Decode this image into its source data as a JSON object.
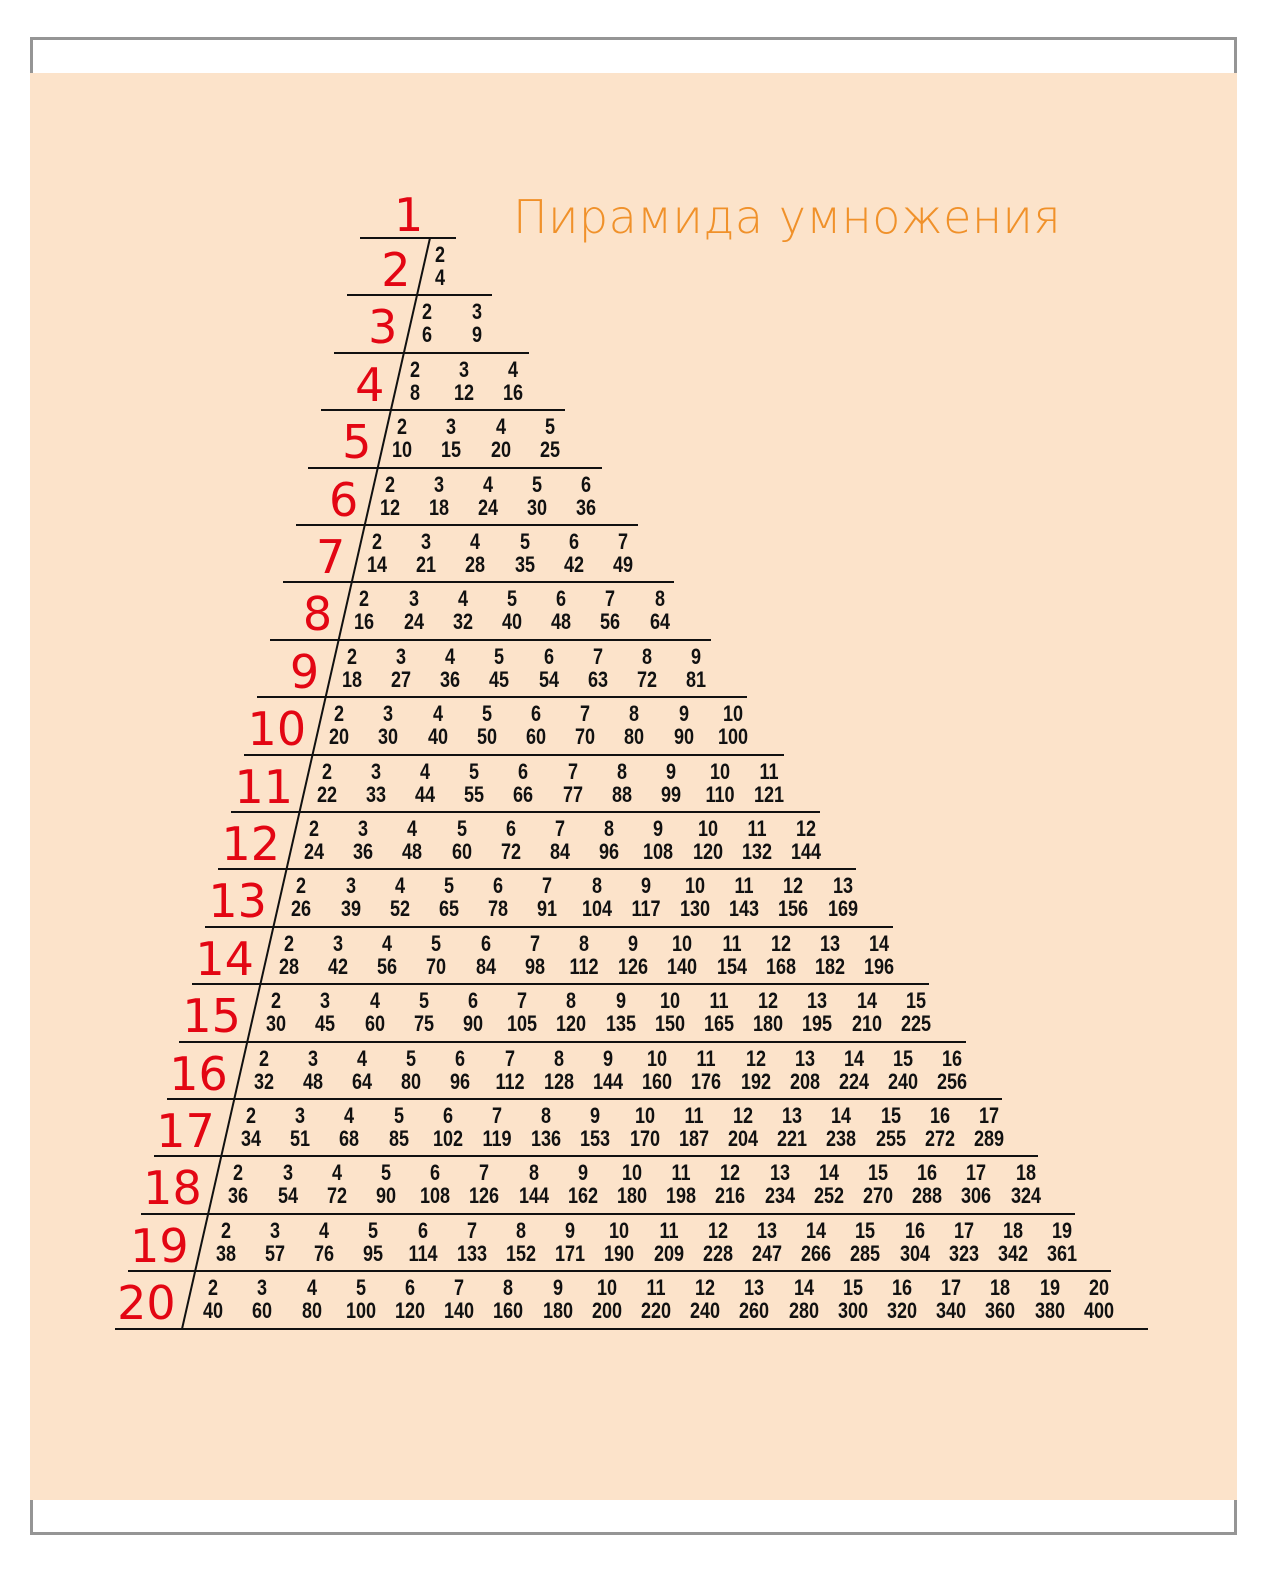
{
  "title": "Пирамида умножения",
  "colors": {
    "background": "#FCE3CA",
    "frame": "#959595",
    "title": "#F0912A",
    "multiplier": "#E30613",
    "text": "#111111"
  },
  "rows": [
    {
      "n": 1,
      "pairs": []
    },
    {
      "n": 2,
      "pairs": [
        [
          2,
          4
        ]
      ]
    },
    {
      "n": 3,
      "pairs": [
        [
          2,
          6
        ],
        [
          3,
          9
        ]
      ]
    },
    {
      "n": 4,
      "pairs": [
        [
          2,
          8
        ],
        [
          3,
          12
        ],
        [
          4,
          16
        ]
      ]
    },
    {
      "n": 5,
      "pairs": [
        [
          2,
          10
        ],
        [
          3,
          15
        ],
        [
          4,
          20
        ],
        [
          5,
          25
        ]
      ]
    },
    {
      "n": 6,
      "pairs": [
        [
          2,
          12
        ],
        [
          3,
          18
        ],
        [
          4,
          24
        ],
        [
          5,
          30
        ],
        [
          6,
          36
        ]
      ]
    },
    {
      "n": 7,
      "pairs": [
        [
          2,
          14
        ],
        [
          3,
          21
        ],
        [
          4,
          28
        ],
        [
          5,
          35
        ],
        [
          6,
          42
        ],
        [
          7,
          49
        ]
      ]
    },
    {
      "n": 8,
      "pairs": [
        [
          2,
          16
        ],
        [
          3,
          24
        ],
        [
          4,
          32
        ],
        [
          5,
          40
        ],
        [
          6,
          48
        ],
        [
          7,
          56
        ],
        [
          8,
          64
        ]
      ]
    },
    {
      "n": 9,
      "pairs": [
        [
          2,
          18
        ],
        [
          3,
          27
        ],
        [
          4,
          36
        ],
        [
          5,
          45
        ],
        [
          6,
          54
        ],
        [
          7,
          63
        ],
        [
          8,
          72
        ],
        [
          9,
          81
        ]
      ]
    },
    {
      "n": 10,
      "pairs": [
        [
          2,
          20
        ],
        [
          3,
          30
        ],
        [
          4,
          40
        ],
        [
          5,
          50
        ],
        [
          6,
          60
        ],
        [
          7,
          70
        ],
        [
          8,
          80
        ],
        [
          9,
          90
        ],
        [
          10,
          100
        ]
      ]
    },
    {
      "n": 11,
      "pairs": [
        [
          2,
          22
        ],
        [
          3,
          33
        ],
        [
          4,
          44
        ],
        [
          5,
          55
        ],
        [
          6,
          66
        ],
        [
          7,
          77
        ],
        [
          8,
          88
        ],
        [
          9,
          99
        ],
        [
          10,
          110
        ],
        [
          11,
          121
        ]
      ]
    },
    {
      "n": 12,
      "pairs": [
        [
          2,
          24
        ],
        [
          3,
          36
        ],
        [
          4,
          48
        ],
        [
          5,
          60
        ],
        [
          6,
          72
        ],
        [
          7,
          84
        ],
        [
          8,
          96
        ],
        [
          9,
          108
        ],
        [
          10,
          120
        ],
        [
          11,
          132
        ],
        [
          12,
          144
        ]
      ]
    },
    {
      "n": 13,
      "pairs": [
        [
          2,
          26
        ],
        [
          3,
          39
        ],
        [
          4,
          52
        ],
        [
          5,
          65
        ],
        [
          6,
          78
        ],
        [
          7,
          91
        ],
        [
          8,
          104
        ],
        [
          9,
          117
        ],
        [
          10,
          130
        ],
        [
          11,
          143
        ],
        [
          12,
          156
        ],
        [
          13,
          169
        ]
      ]
    },
    {
      "n": 14,
      "pairs": [
        [
          2,
          28
        ],
        [
          3,
          42
        ],
        [
          4,
          56
        ],
        [
          5,
          70
        ],
        [
          6,
          84
        ],
        [
          7,
          98
        ],
        [
          8,
          112
        ],
        [
          9,
          126
        ],
        [
          10,
          140
        ],
        [
          11,
          154
        ],
        [
          12,
          168
        ],
        [
          13,
          182
        ],
        [
          14,
          196
        ]
      ]
    },
    {
      "n": 15,
      "pairs": [
        [
          2,
          30
        ],
        [
          3,
          45
        ],
        [
          4,
          60
        ],
        [
          5,
          75
        ],
        [
          6,
          90
        ],
        [
          7,
          105
        ],
        [
          8,
          120
        ],
        [
          9,
          135
        ],
        [
          10,
          150
        ],
        [
          11,
          165
        ],
        [
          12,
          180
        ],
        [
          13,
          195
        ],
        [
          14,
          210
        ],
        [
          15,
          225
        ]
      ]
    },
    {
      "n": 16,
      "pairs": [
        [
          2,
          32
        ],
        [
          3,
          48
        ],
        [
          4,
          64
        ],
        [
          5,
          80
        ],
        [
          6,
          96
        ],
        [
          7,
          112
        ],
        [
          8,
          128
        ],
        [
          9,
          144
        ],
        [
          10,
          160
        ],
        [
          11,
          176
        ],
        [
          12,
          192
        ],
        [
          13,
          208
        ],
        [
          14,
          224
        ],
        [
          15,
          240
        ],
        [
          16,
          256
        ]
      ]
    },
    {
      "n": 17,
      "pairs": [
        [
          2,
          34
        ],
        [
          3,
          51
        ],
        [
          4,
          68
        ],
        [
          5,
          85
        ],
        [
          6,
          102
        ],
        [
          7,
          119
        ],
        [
          8,
          136
        ],
        [
          9,
          153
        ],
        [
          10,
          170
        ],
        [
          11,
          187
        ],
        [
          12,
          204
        ],
        [
          13,
          221
        ],
        [
          14,
          238
        ],
        [
          15,
          255
        ],
        [
          16,
          272
        ],
        [
          17,
          289
        ]
      ]
    },
    {
      "n": 18,
      "pairs": [
        [
          2,
          36
        ],
        [
          3,
          54
        ],
        [
          4,
          72
        ],
        [
          5,
          90
        ],
        [
          6,
          108
        ],
        [
          7,
          126
        ],
        [
          8,
          144
        ],
        [
          9,
          162
        ],
        [
          10,
          180
        ],
        [
          11,
          198
        ],
        [
          12,
          216
        ],
        [
          13,
          234
        ],
        [
          14,
          252
        ],
        [
          15,
          270
        ],
        [
          16,
          288
        ],
        [
          17,
          306
        ],
        [
          18,
          324
        ]
      ]
    },
    {
      "n": 19,
      "pairs": [
        [
          2,
          38
        ],
        [
          3,
          57
        ],
        [
          4,
          76
        ],
        [
          5,
          95
        ],
        [
          6,
          114
        ],
        [
          7,
          133
        ],
        [
          8,
          152
        ],
        [
          9,
          171
        ],
        [
          10,
          190
        ],
        [
          11,
          209
        ],
        [
          12,
          228
        ],
        [
          13,
          247
        ],
        [
          14,
          266
        ],
        [
          15,
          285
        ],
        [
          16,
          304
        ],
        [
          17,
          323
        ],
        [
          18,
          342
        ],
        [
          19,
          361
        ]
      ]
    },
    {
      "n": 20,
      "pairs": [
        [
          2,
          40
        ],
        [
          3,
          60
        ],
        [
          4,
          80
        ],
        [
          5,
          100
        ],
        [
          6,
          120
        ],
        [
          7,
          140
        ],
        [
          8,
          160
        ],
        [
          9,
          180
        ],
        [
          10,
          200
        ],
        [
          11,
          220
        ],
        [
          12,
          240
        ],
        [
          13,
          260
        ],
        [
          14,
          280
        ],
        [
          15,
          300
        ],
        [
          16,
          320
        ],
        [
          17,
          340
        ],
        [
          18,
          360
        ],
        [
          19,
          380
        ],
        [
          20,
          400
        ]
      ]
    }
  ]
}
